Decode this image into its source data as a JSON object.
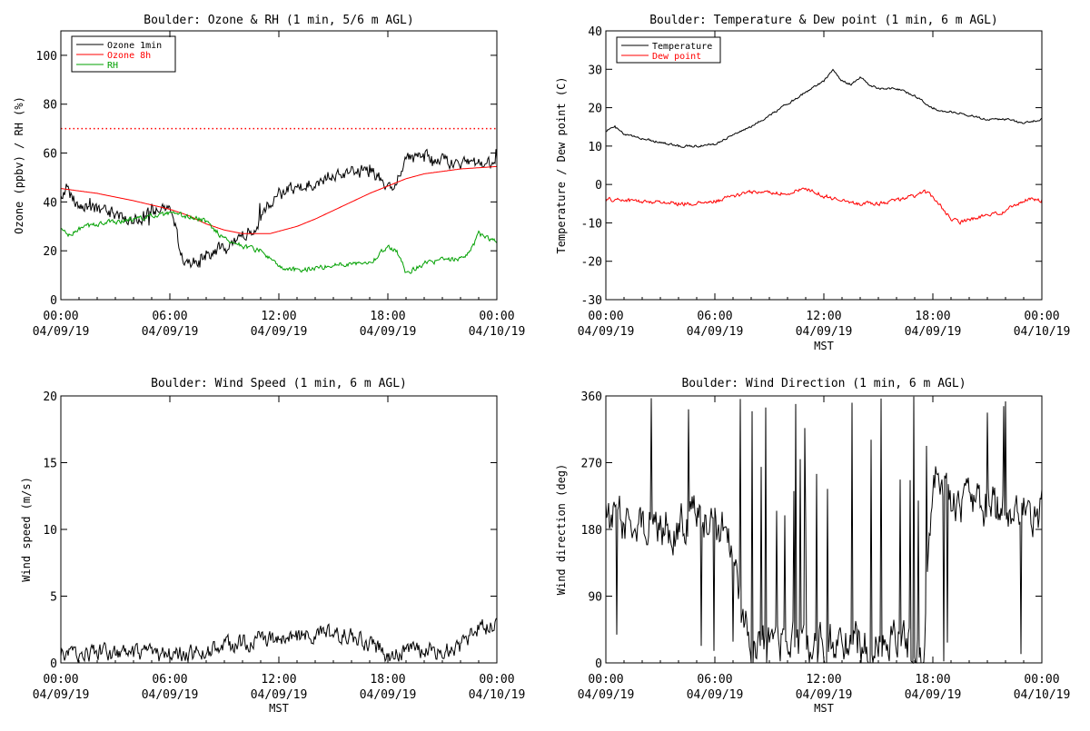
{
  "figure": {
    "background": "#ffffff"
  },
  "chart_data": [
    {
      "id": "ozone",
      "type": "line",
      "title": "Boulder: Ozone & RH (1 min, 5/6 m AGL)",
      "ylabel": "Ozone (ppbv) / RH (%)",
      "xlabel": "",
      "xlim": [
        0,
        24
      ],
      "ylim": [
        0,
        110
      ],
      "yticks": [
        0,
        20,
        40,
        60,
        80,
        100
      ],
      "xticks": [
        {
          "t": 0,
          "l1": "00:00",
          "l2": "04/09/19"
        },
        {
          "t": 6,
          "l1": "06:00",
          "l2": "04/09/19"
        },
        {
          "t": 12,
          "l1": "12:00",
          "l2": "04/09/19"
        },
        {
          "t": 18,
          "l1": "18:00",
          "l2": "04/09/19"
        },
        {
          "t": 24,
          "l1": "00:00",
          "l2": "04/10/19"
        }
      ],
      "legend": {
        "position": "top-left"
      },
      "reference_line": {
        "y": 70,
        "color": "#ff0000",
        "style": "dotted"
      },
      "series": [
        {
          "name": "Ozone 1min",
          "color": "#000000",
          "noise": 2.2,
          "spike": 0.04,
          "points": [
            [
              0,
              42
            ],
            [
              0.3,
              46
            ],
            [
              1,
              38
            ],
            [
              2,
              37
            ],
            [
              3,
              35
            ],
            [
              4,
              33
            ],
            [
              4.5,
              33
            ],
            [
              5,
              36
            ],
            [
              6,
              37
            ],
            [
              6.3,
              30
            ],
            [
              6.6,
              18
            ],
            [
              7,
              16
            ],
            [
              7.5,
              15
            ],
            [
              8,
              18
            ],
            [
              8.5,
              20
            ],
            [
              9,
              22
            ],
            [
              9.5,
              24
            ],
            [
              10,
              27
            ],
            [
              10.5,
              29
            ],
            [
              11,
              33
            ],
            [
              11.5,
              40
            ],
            [
              12,
              44
            ],
            [
              13,
              46
            ],
            [
              14,
              48
            ],
            [
              15,
              50
            ],
            [
              16,
              52
            ],
            [
              17,
              53
            ],
            [
              17.5,
              50
            ],
            [
              18,
              45
            ],
            [
              18.5,
              47
            ],
            [
              19,
              57
            ],
            [
              19.5,
              60
            ],
            [
              20,
              58
            ],
            [
              21,
              57
            ],
            [
              22,
              56
            ],
            [
              23,
              56
            ],
            [
              24,
              55
            ]
          ]
        },
        {
          "name": "Ozone 8h",
          "color": "#ff0000",
          "noise": 0,
          "points": [
            [
              0,
              45.5
            ],
            [
              2,
              43.5
            ],
            [
              4,
              40.5
            ],
            [
              6,
              37
            ],
            [
              7,
              34.5
            ],
            [
              8,
              31
            ],
            [
              9,
              28.5
            ],
            [
              10,
              27
            ],
            [
              11.5,
              27
            ],
            [
              13,
              30
            ],
            [
              14,
              33
            ],
            [
              15,
              36.5
            ],
            [
              16,
              40
            ],
            [
              17,
              43.5
            ],
            [
              18,
              46.5
            ],
            [
              19,
              49.5
            ],
            [
              20,
              51.5
            ],
            [
              21,
              52.5
            ],
            [
              22,
              53.5
            ],
            [
              23,
              54
            ],
            [
              24,
              54.5
            ]
          ]
        },
        {
          "name": "RH",
          "color": "#00a000",
          "noise": 0.9,
          "points": [
            [
              0,
              29
            ],
            [
              0.5,
              26
            ],
            [
              1,
              29
            ],
            [
              2,
              31
            ],
            [
              3,
              32
            ],
            [
              4,
              33
            ],
            [
              5,
              34
            ],
            [
              6,
              35
            ],
            [
              7,
              34
            ],
            [
              8,
              32
            ],
            [
              9,
              25
            ],
            [
              10,
              22
            ],
            [
              11,
              20
            ],
            [
              11.5,
              17
            ],
            [
              12,
              13
            ],
            [
              13,
              12
            ],
            [
              14,
              13
            ],
            [
              15,
              14
            ],
            [
              16,
              15
            ],
            [
              17,
              15.5
            ],
            [
              17.5,
              18
            ],
            [
              18,
              22
            ],
            [
              18.5,
              20
            ],
            [
              19,
              11
            ],
            [
              19.5,
              13
            ],
            [
              20,
              15
            ],
            [
              21,
              16
            ],
            [
              22,
              17
            ],
            [
              22.5,
              19
            ],
            [
              23,
              27
            ],
            [
              23.5,
              25
            ],
            [
              24,
              24
            ]
          ]
        }
      ]
    },
    {
      "id": "temp",
      "type": "line",
      "title": "Boulder: Temperature & Dew point (1 min, 6 m AGL)",
      "ylabel": "Temperature / Dew point (C)",
      "xlabel": "MST",
      "xlim": [
        0,
        24
      ],
      "ylim": [
        -30,
        40
      ],
      "yticks": [
        -30,
        -20,
        -10,
        0,
        10,
        20,
        30,
        40
      ],
      "xticks": [
        {
          "t": 0,
          "l1": "00:00",
          "l2": "04/09/19"
        },
        {
          "t": 6,
          "l1": "06:00",
          "l2": "04/09/19"
        },
        {
          "t": 12,
          "l1": "12:00",
          "l2": "04/09/19"
        },
        {
          "t": 18,
          "l1": "18:00",
          "l2": "04/09/19"
        },
        {
          "t": 24,
          "l1": "00:00",
          "l2": "04/10/19"
        }
      ],
      "legend": {
        "position": "top-left"
      },
      "series": [
        {
          "name": "Temperature",
          "color": "#000000",
          "noise": 0.25,
          "points": [
            [
              0,
              14
            ],
            [
              0.5,
              15
            ],
            [
              1,
              13
            ],
            [
              2,
              12
            ],
            [
              3,
              11
            ],
            [
              4,
              10
            ],
            [
              5,
              10
            ],
            [
              6,
              10.5
            ],
            [
              7,
              13
            ],
            [
              8,
              15
            ],
            [
              9,
              18
            ],
            [
              10,
              21
            ],
            [
              11,
              24
            ],
            [
              12,
              27
            ],
            [
              12.5,
              30
            ],
            [
              13,
              27
            ],
            [
              13.5,
              26
            ],
            [
              14,
              28
            ],
            [
              14.5,
              26
            ],
            [
              15,
              25
            ],
            [
              16,
              25
            ],
            [
              17,
              23
            ],
            [
              18,
              20
            ],
            [
              18.5,
              19
            ],
            [
              19,
              19
            ],
            [
              20,
              18
            ],
            [
              21,
              17
            ],
            [
              22,
              17
            ],
            [
              23,
              16
            ],
            [
              24,
              17
            ]
          ]
        },
        {
          "name": "Dew point",
          "color": "#ff0000",
          "noise": 0.45,
          "points": [
            [
              0,
              -4
            ],
            [
              1,
              -4
            ],
            [
              2,
              -4.5
            ],
            [
              3,
              -4.5
            ],
            [
              4,
              -5
            ],
            [
              5,
              -5
            ],
            [
              6,
              -4.5
            ],
            [
              7,
              -3
            ],
            [
              8,
              -2
            ],
            [
              9,
              -2
            ],
            [
              10,
              -2.5
            ],
            [
              11,
              -1
            ],
            [
              11.5,
              -2
            ],
            [
              12,
              -3
            ],
            [
              13,
              -4
            ],
            [
              14,
              -5
            ],
            [
              15,
              -5
            ],
            [
              16,
              -4
            ],
            [
              17,
              -3
            ],
            [
              17.5,
              -2
            ],
            [
              18,
              -3
            ],
            [
              18.5,
              -6
            ],
            [
              19,
              -9
            ],
            [
              19.5,
              -10
            ],
            [
              20,
              -9
            ],
            [
              21,
              -8
            ],
            [
              22,
              -7
            ],
            [
              23,
              -4
            ],
            [
              24,
              -4
            ]
          ]
        }
      ]
    },
    {
      "id": "wspd",
      "type": "line",
      "title": "Boulder: Wind Speed (1 min, 6 m AGL)",
      "ylabel": "Wind speed (m/s)",
      "xlabel": "MST",
      "xlim": [
        0,
        24
      ],
      "ylim": [
        0,
        20
      ],
      "yticks": [
        0,
        5,
        10,
        15,
        20
      ],
      "xticks": [
        {
          "t": 0,
          "l1": "00:00",
          "l2": "04/09/19"
        },
        {
          "t": 6,
          "l1": "06:00",
          "l2": "04/09/19"
        },
        {
          "t": 12,
          "l1": "12:00",
          "l2": "04/09/19"
        },
        {
          "t": 18,
          "l1": "18:00",
          "l2": "04/09/19"
        },
        {
          "t": 24,
          "l1": "00:00",
          "l2": "04/10/19"
        }
      ],
      "series": [
        {
          "name": "",
          "color": "#000000",
          "noise": 0.55,
          "min": 0,
          "points": [
            [
              0,
              0.6
            ],
            [
              2,
              0.8
            ],
            [
              4,
              0.6
            ],
            [
              6,
              0.6
            ],
            [
              8,
              0.8
            ],
            [
              9,
              1.3
            ],
            [
              10,
              1.5
            ],
            [
              11,
              1.8
            ],
            [
              12,
              1.7
            ],
            [
              13,
              2.0
            ],
            [
              14,
              2.0
            ],
            [
              15,
              2.2
            ],
            [
              16,
              2.0
            ],
            [
              17,
              1.4
            ],
            [
              18,
              0.6
            ],
            [
              19,
              0.8
            ],
            [
              20,
              1.0
            ],
            [
              21,
              0.9
            ],
            [
              22,
              1.2
            ],
            [
              23,
              2.6
            ],
            [
              24,
              3.0
            ]
          ]
        }
      ]
    },
    {
      "id": "wdir",
      "type": "line",
      "title": "Boulder: Wind Direction (1 min, 6 m AGL)",
      "ylabel": "Wind direction (deg)",
      "xlabel": "MST",
      "xlim": [
        0,
        24
      ],
      "ylim": [
        0,
        360
      ],
      "yticks": [
        0,
        90,
        180,
        270,
        360
      ],
      "xticks": [
        {
          "t": 0,
          "l1": "00:00",
          "l2": "04/09/19"
        },
        {
          "t": 6,
          "l1": "06:00",
          "l2": "04/09/19"
        },
        {
          "t": 12,
          "l1": "12:00",
          "l2": "04/09/19"
        },
        {
          "t": 18,
          "l1": "18:00",
          "l2": "04/09/19"
        },
        {
          "t": 24,
          "l1": "00:00",
          "l2": "04/10/19"
        }
      ],
      "series": [
        {
          "name": "",
          "color": "#000000",
          "noise": 25,
          "wrap": true,
          "min": 0,
          "max": 360,
          "points": [
            [
              0,
              200
            ],
            [
              1,
              190
            ],
            [
              2,
              190
            ],
            [
              3,
              185
            ],
            [
              4,
              180
            ],
            [
              5,
              200
            ],
            [
              6,
              190
            ],
            [
              7,
              160
            ],
            [
              7.5,
              60
            ],
            [
              8,
              30
            ],
            [
              9,
              25
            ],
            [
              10,
              30
            ],
            [
              11,
              30
            ],
            [
              12,
              25
            ],
            [
              13,
              25
            ],
            [
              14,
              25
            ],
            [
              15,
              28
            ],
            [
              16,
              28
            ],
            [
              17,
              25
            ],
            [
              17.5,
              20
            ],
            [
              18,
              250
            ],
            [
              19,
              220
            ],
            [
              20,
              215
            ],
            [
              21,
              210
            ],
            [
              22,
              205
            ],
            [
              23,
              210
            ],
            [
              24,
              200
            ]
          ]
        }
      ]
    }
  ]
}
